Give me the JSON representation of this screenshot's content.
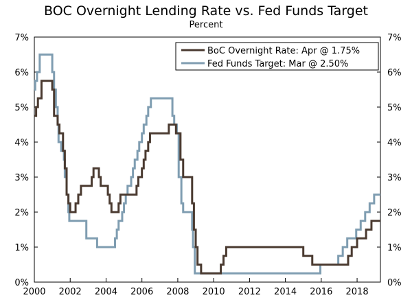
{
  "chart_data": {
    "type": "line",
    "title": "BOC Overnight Lending Rate vs. Fed Funds Target",
    "subtitle": "Percent",
    "xlim": [
      2000,
      2019.3
    ],
    "ylim": [
      0,
      7
    ],
    "x_ticks": [
      2000,
      2002,
      2004,
      2006,
      2008,
      2010,
      2012,
      2014,
      2016,
      2018
    ],
    "x_tick_labels": [
      "2000",
      "2002",
      "2004",
      "2006",
      "2008",
      "2010",
      "2012",
      "2014",
      "2016",
      "2018"
    ],
    "y_ticks": [
      0,
      1,
      2,
      3,
      4,
      5,
      6,
      7
    ],
    "y_tick_labels": [
      "0%",
      "1%",
      "2%",
      "3%",
      "4%",
      "5%",
      "6%",
      "7%"
    ],
    "grid": false,
    "legend_position": "top-right",
    "series": [
      {
        "name": "BoC Overnight Rate: Apr @ 1.75%",
        "color": "#4a3a30",
        "step": true,
        "points": [
          [
            2000.0,
            4.75
          ],
          [
            2000.1,
            5.0
          ],
          [
            2000.2,
            5.25
          ],
          [
            2000.4,
            5.75
          ],
          [
            2001.0,
            5.5
          ],
          [
            2001.1,
            4.75
          ],
          [
            2001.3,
            4.5
          ],
          [
            2001.4,
            4.25
          ],
          [
            2001.6,
            3.75
          ],
          [
            2001.7,
            3.25
          ],
          [
            2001.8,
            2.5
          ],
          [
            2001.9,
            2.25
          ],
          [
            2002.0,
            2.0
          ],
          [
            2002.3,
            2.25
          ],
          [
            2002.45,
            2.5
          ],
          [
            2002.6,
            2.75
          ],
          [
            2003.2,
            3.0
          ],
          [
            2003.3,
            3.25
          ],
          [
            2003.6,
            3.0
          ],
          [
            2003.7,
            2.75
          ],
          [
            2004.1,
            2.5
          ],
          [
            2004.2,
            2.25
          ],
          [
            2004.3,
            2.0
          ],
          [
            2004.7,
            2.25
          ],
          [
            2004.8,
            2.5
          ],
          [
            2005.7,
            2.75
          ],
          [
            2005.8,
            3.0
          ],
          [
            2006.0,
            3.25
          ],
          [
            2006.1,
            3.5
          ],
          [
            2006.2,
            3.75
          ],
          [
            2006.35,
            4.0
          ],
          [
            2006.45,
            4.25
          ],
          [
            2007.5,
            4.5
          ],
          [
            2007.9,
            4.25
          ],
          [
            2008.15,
            3.5
          ],
          [
            2008.3,
            3.0
          ],
          [
            2008.8,
            2.25
          ],
          [
            2008.9,
            1.5
          ],
          [
            2009.0,
            1.0
          ],
          [
            2009.1,
            0.5
          ],
          [
            2009.3,
            0.25
          ],
          [
            2010.4,
            0.5
          ],
          [
            2010.55,
            0.75
          ],
          [
            2010.7,
            1.0
          ],
          [
            2015.0,
            0.75
          ],
          [
            2015.5,
            0.5
          ],
          [
            2017.5,
            0.75
          ],
          [
            2017.7,
            1.0
          ],
          [
            2018.0,
            1.25
          ],
          [
            2018.5,
            1.5
          ],
          [
            2018.8,
            1.75
          ],
          [
            2019.3,
            1.75
          ]
        ]
      },
      {
        "name": "Fed Funds Target: Mar @ 2.50%",
        "color": "#7f9db1",
        "step": true,
        "points": [
          [
            2000.0,
            5.5
          ],
          [
            2000.05,
            5.75
          ],
          [
            2000.15,
            6.0
          ],
          [
            2000.3,
            6.5
          ],
          [
            2001.0,
            6.0
          ],
          [
            2001.1,
            5.5
          ],
          [
            2001.2,
            5.0
          ],
          [
            2001.3,
            4.5
          ],
          [
            2001.35,
            4.0
          ],
          [
            2001.5,
            3.75
          ],
          [
            2001.65,
            3.5
          ],
          [
            2001.7,
            3.0
          ],
          [
            2001.8,
            2.5
          ],
          [
            2001.9,
            2.0
          ],
          [
            2001.95,
            1.75
          ],
          [
            2002.9,
            1.25
          ],
          [
            2003.5,
            1.0
          ],
          [
            2004.5,
            1.25
          ],
          [
            2004.6,
            1.5
          ],
          [
            2004.7,
            1.75
          ],
          [
            2004.9,
            2.0
          ],
          [
            2005.0,
            2.25
          ],
          [
            2005.1,
            2.5
          ],
          [
            2005.2,
            2.75
          ],
          [
            2005.4,
            3.0
          ],
          [
            2005.5,
            3.25
          ],
          [
            2005.6,
            3.5
          ],
          [
            2005.75,
            3.75
          ],
          [
            2005.85,
            4.0
          ],
          [
            2006.0,
            4.25
          ],
          [
            2006.1,
            4.5
          ],
          [
            2006.25,
            4.75
          ],
          [
            2006.35,
            5.0
          ],
          [
            2006.5,
            5.25
          ],
          [
            2007.7,
            4.75
          ],
          [
            2007.8,
            4.5
          ],
          [
            2007.95,
            4.25
          ],
          [
            2008.05,
            3.0
          ],
          [
            2008.2,
            2.25
          ],
          [
            2008.3,
            2.0
          ],
          [
            2008.8,
            1.5
          ],
          [
            2008.85,
            1.0
          ],
          [
            2008.95,
            0.25
          ],
          [
            2015.95,
            0.5
          ],
          [
            2016.95,
            0.75
          ],
          [
            2017.2,
            1.0
          ],
          [
            2017.45,
            1.25
          ],
          [
            2017.95,
            1.5
          ],
          [
            2018.2,
            1.75
          ],
          [
            2018.45,
            2.0
          ],
          [
            2018.7,
            2.25
          ],
          [
            2018.95,
            2.5
          ],
          [
            2019.3,
            2.5
          ]
        ]
      }
    ]
  }
}
